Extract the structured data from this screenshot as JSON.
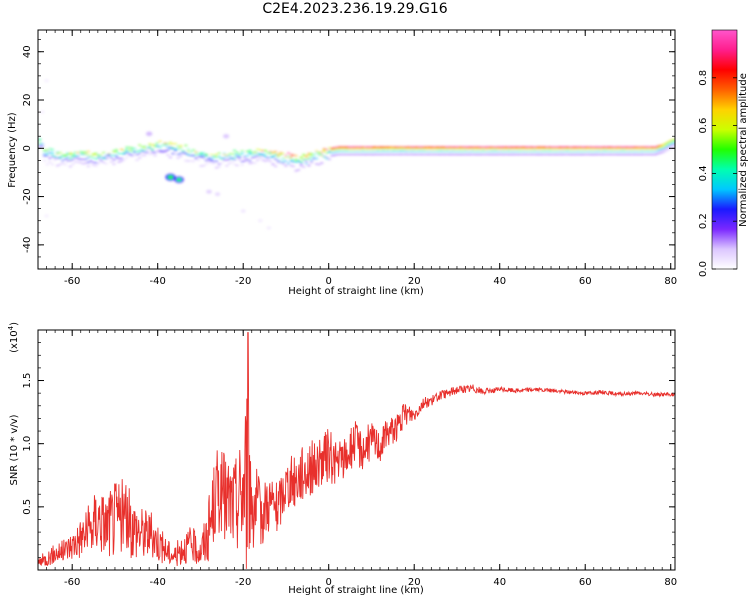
{
  "figure": {
    "title": "C2E4.2023.236.19.29.G16"
  },
  "chart_data": [
    {
      "type": "heatmap",
      "xlabel": "Height of straight line (km)",
      "ylabel": "Frequency (Hz)",
      "xlim": [
        -68,
        81
      ],
      "ylim": [
        -50,
        49
      ],
      "xticks": [
        -60,
        -40,
        -20,
        0,
        20,
        40,
        60,
        80
      ],
      "xtick_labels": [
        "-60",
        "-40",
        "-20",
        "0",
        "20",
        "40",
        "60",
        "80"
      ],
      "yticks": [
        -40,
        -20,
        0,
        20,
        40
      ],
      "ytick_labels": [
        "-40",
        "-20",
        "0",
        "20",
        "40"
      ],
      "colorbar": {
        "label": "Normalized spectral amplitude",
        "range": [
          0,
          1
        ],
        "ticks": [
          0.0,
          0.2,
          0.4,
          0.6,
          0.8
        ],
        "tick_labels": [
          "0.0",
          "0.2",
          "0.4",
          "0.6",
          "0.8"
        ],
        "colors": [
          "#ffffff",
          "#dcc6ff",
          "#7a28ff",
          "#1a1aff",
          "#00c8ff",
          "#00ffb0",
          "#22ff00",
          "#ccff00",
          "#ffd200",
          "#ff6000",
          "#ff0000",
          "#ff1e8c",
          "#ff55cc"
        ]
      },
      "ridge": [
        {
          "x": -67,
          "f": 0,
          "a": 0.5
        },
        {
          "x": -64,
          "f": -1,
          "a": 0.55
        },
        {
          "x": -61,
          "f": -2,
          "a": 0.6
        },
        {
          "x": -58,
          "f": -1,
          "a": 0.55
        },
        {
          "x": -55,
          "f": -2,
          "a": 0.6
        },
        {
          "x": -52,
          "f": -1,
          "a": 0.5
        },
        {
          "x": -49,
          "f": 0,
          "a": 0.6
        },
        {
          "x": -46,
          "f": 1,
          "a": 0.55
        },
        {
          "x": -43,
          "f": 2,
          "a": 0.6
        },
        {
          "x": -40,
          "f": 3,
          "a": 0.65
        },
        {
          "x": -37,
          "f": 2,
          "a": 0.6
        },
        {
          "x": -34,
          "f": 1,
          "a": 0.55
        },
        {
          "x": -31,
          "f": -1,
          "a": 0.55
        },
        {
          "x": -28,
          "f": -2,
          "a": 0.5
        },
        {
          "x": -25,
          "f": -2,
          "a": 0.55
        },
        {
          "x": -22,
          "f": -1,
          "a": 0.5
        },
        {
          "x": -19,
          "f": -1,
          "a": 0.55
        },
        {
          "x": -16,
          "f": 0,
          "a": 0.65
        },
        {
          "x": -13,
          "f": -1,
          "a": 0.7
        },
        {
          "x": -10,
          "f": -2,
          "a": 0.8
        },
        {
          "x": -7,
          "f": -3,
          "a": 0.75
        },
        {
          "x": -4,
          "f": -1,
          "a": 0.7
        },
        {
          "x": -1,
          "f": 0,
          "a": 0.85
        },
        {
          "x": 2,
          "f": 1,
          "a": 0.9
        },
        {
          "x": 6,
          "f": 1,
          "a": 0.92
        },
        {
          "x": 10,
          "f": 1,
          "a": 0.9
        },
        {
          "x": 15,
          "f": 1,
          "a": 0.85
        },
        {
          "x": 20,
          "f": 1,
          "a": 0.88
        },
        {
          "x": 25,
          "f": 1,
          "a": 0.9
        },
        {
          "x": 30,
          "f": 1,
          "a": 0.92
        },
        {
          "x": 40,
          "f": 1,
          "a": 0.92
        },
        {
          "x": 50,
          "f": 1,
          "a": 0.92
        },
        {
          "x": 60,
          "f": 1,
          "a": 0.92
        },
        {
          "x": 70,
          "f": 1,
          "a": 0.92
        },
        {
          "x": 76,
          "f": 1,
          "a": 0.9
        },
        {
          "x": 78,
          "f": 2,
          "a": 0.7
        },
        {
          "x": 80,
          "f": 4,
          "a": 0.6
        }
      ],
      "patches": [
        {
          "x": -37,
          "f": -12,
          "a": 0.5
        },
        {
          "x": -35,
          "f": -13,
          "a": 0.45
        },
        {
          "x": -28,
          "f": -18,
          "a": 0.15
        },
        {
          "x": -26,
          "f": -19,
          "a": 0.12
        },
        {
          "x": -20,
          "f": -26,
          "a": 0.08
        },
        {
          "x": -16,
          "f": -30,
          "a": 0.06
        },
        {
          "x": -14,
          "f": -33,
          "a": 0.06
        },
        {
          "x": -66,
          "f": -28,
          "a": 0.05
        },
        {
          "x": -66,
          "f": 28,
          "a": 0.05
        },
        {
          "x": -67,
          "f": 15,
          "a": 0.05
        },
        {
          "x": -42,
          "f": 6,
          "a": 0.2
        },
        {
          "x": -24,
          "f": 5,
          "a": 0.18
        }
      ]
    },
    {
      "type": "line",
      "xlabel": "Height of straight line (km)",
      "ylabel": "SNR (10 * v/v)",
      "scale_label": "(x10",
      "scale_exp": "4",
      "xlim": [
        -68,
        81
      ],
      "ylim": [
        0,
        19000
      ],
      "xticks": [
        -60,
        -40,
        -20,
        0,
        20,
        40,
        60,
        80
      ],
      "xtick_labels": [
        "-60",
        "-40",
        "-20",
        "0",
        "20",
        "40",
        "60",
        "80"
      ],
      "yticks": [
        5000,
        10000,
        15000
      ],
      "ytick_labels": [
        "0.5",
        "1.0",
        "1.5"
      ],
      "color": "#e8302c",
      "series": [
        {
          "x": [
            -68,
            -66,
            -64,
            -62,
            -60,
            -58,
            -56,
            -54,
            -52,
            -50,
            -48,
            -46,
            -44,
            -42,
            -40,
            -38,
            -36,
            -34,
            -32,
            -30,
            -28,
            -26,
            -24,
            -22,
            -20,
            -19,
            -18,
            -16,
            -14,
            -12,
            -10,
            -8,
            -6,
            -4,
            -2,
            0,
            2,
            4,
            6,
            8,
            10,
            12,
            14,
            16,
            18,
            20,
            22,
            24,
            26,
            28,
            30,
            32,
            34,
            36,
            38,
            40,
            44,
            48,
            52,
            56,
            60,
            64,
            68,
            72,
            76,
            80,
            81
          ],
          "y": [
            600,
            900,
            1300,
            1500,
            2000,
            2600,
            3100,
            4200,
            3600,
            4100,
            4300,
            3500,
            3000,
            2900,
            2300,
            1500,
            1100,
            1800,
            2000,
            1400,
            3200,
            6500,
            5600,
            5100,
            6400,
            8000,
            5800,
            4200,
            5500,
            4700,
            6800,
            7000,
            7800,
            8100,
            8400,
            9100,
            8400,
            8900,
            10100,
            9500,
            10300,
            9800,
            11000,
            11300,
            12400,
            12300,
            13200,
            13400,
            13800,
            14000,
            14300,
            14300,
            14400,
            14100,
            14200,
            14300,
            14200,
            14300,
            14200,
            14100,
            14000,
            14100,
            13900,
            14000,
            13900,
            13900,
            13800
          ],
          "amp": [
            500,
            600,
            800,
            900,
            1200,
            1700,
            2200,
            2800,
            2500,
            3200,
            3000,
            2600,
            2200,
            2000,
            1600,
            1100,
            900,
            1300,
            1500,
            1100,
            2800,
            3500,
            3500,
            3800,
            5000,
            9000,
            4200,
            2600,
            2500,
            2200,
            2000,
            2200,
            2300,
            2200,
            2000,
            2200,
            1800,
            1700,
            1800,
            1600,
            1500,
            1300,
            1200,
            1100,
            1000,
            600,
            500,
            400,
            350,
            350,
            350,
            300,
            350,
            250,
            200,
            200,
            180,
            160,
            160,
            150,
            150,
            150,
            150,
            150,
            150,
            150,
            150
          ]
        }
      ]
    }
  ]
}
